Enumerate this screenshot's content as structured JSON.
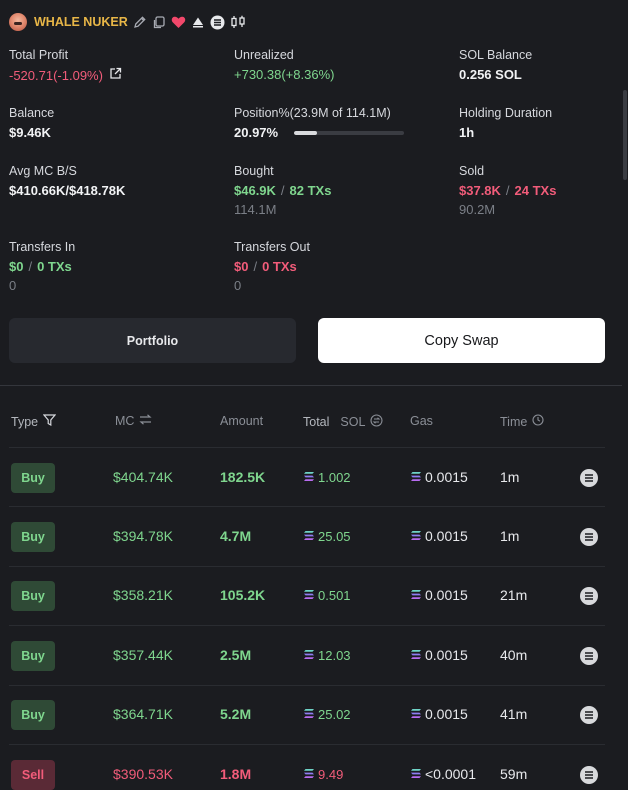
{
  "header": {
    "name": "WHALE NUKER"
  },
  "stats": {
    "total_profit": {
      "label": "Total Profit",
      "value": "-520.71(-1.09%)"
    },
    "unrealized": {
      "label": "Unrealized",
      "value": "+730.38(+8.36%)"
    },
    "sol_balance": {
      "label": "SOL Balance",
      "value": "0.256 SOL"
    },
    "balance": {
      "label": "Balance",
      "value": "$9.46K"
    },
    "position": {
      "label": "Position%(23.9M of 114.1M)",
      "value": "20.97%",
      "fraction": 0.2097
    },
    "holding": {
      "label": "Holding Duration",
      "value": "1h"
    },
    "avg_mc": {
      "label": "Avg MC B/S",
      "value": "$410.66K/$418.78K"
    },
    "bought": {
      "label": "Bought",
      "amount": "$46.9K",
      "sep": "/",
      "txs": "82 TXs",
      "sub": "114.1M"
    },
    "sold": {
      "label": "Sold",
      "amount": "$37.8K",
      "sep": "/",
      "txs": "24 TXs",
      "sub": "90.2M"
    },
    "transfers_in": {
      "label": "Transfers In",
      "amount": "$0",
      "sep": "/",
      "txs": "0 TXs",
      "sub": "0"
    },
    "transfers_out": {
      "label": "Transfers Out",
      "amount": "$0",
      "sep": "/",
      "txs": "0 TXs",
      "sub": "0"
    }
  },
  "buttons": {
    "portfolio": "Portfolio",
    "copy_swap": "Copy Swap"
  },
  "table": {
    "headers": {
      "type": "Type",
      "mc": "MC",
      "amount": "Amount",
      "total": "Total",
      "sol": "SOL",
      "gas": "Gas",
      "time": "Time"
    },
    "rows": [
      {
        "type": "Buy",
        "mc": "$404.74K",
        "amount": "182.5K",
        "total": "1.002",
        "gas": "0.0015",
        "time": "1m"
      },
      {
        "type": "Buy",
        "mc": "$394.78K",
        "amount": "4.7M",
        "total": "25.05",
        "gas": "0.0015",
        "time": "1m"
      },
      {
        "type": "Buy",
        "mc": "$358.21K",
        "amount": "105.2K",
        "total": "0.501",
        "gas": "0.0015",
        "time": "21m"
      },
      {
        "type": "Buy",
        "mc": "$357.44K",
        "amount": "2.5M",
        "total": "12.03",
        "gas": "0.0015",
        "time": "40m"
      },
      {
        "type": "Buy",
        "mc": "$364.71K",
        "amount": "5.2M",
        "total": "25.02",
        "gas": "0.0015",
        "time": "41m"
      },
      {
        "type": "Sell",
        "mc": "$390.53K",
        "amount": "1.8M",
        "total": "9.49",
        "gas": "<0.0001",
        "time": "59m"
      }
    ]
  },
  "colors": {
    "background": "#1b1c20",
    "green": "#7fd68e",
    "red": "#f25c7a",
    "name_gold": "#e8b647"
  }
}
